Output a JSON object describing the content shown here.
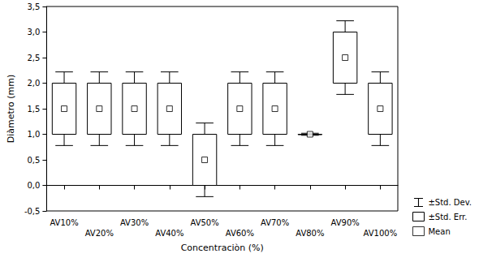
{
  "chart_data": {
    "type": "box",
    "x_label": "Concentraciòn (%)",
    "y_label": "Diàmetro (mm)",
    "categories": [
      "AV10%",
      "AV20%",
      "AV30%",
      "AV40%",
      "AV50%",
      "AV60%",
      "AV70%",
      "AV80%",
      "AV90%",
      "AV100%"
    ],
    "values": [
      1.5,
      1.5,
      1.5,
      1.5,
      0.5,
      1.5,
      1.5,
      1.0,
      2.5,
      1.5
    ],
    "std_err": [
      0.5,
      0.5,
      0.5,
      0.5,
      0.5,
      0.5,
      0.5,
      0.0,
      0.5,
      0.5
    ],
    "std_dev": [
      0.72,
      0.72,
      0.72,
      0.72,
      0.72,
      0.72,
      0.72,
      0.02,
      0.72,
      0.72
    ],
    "series_names": {
      "mean": "Mean",
      "std_err": "±Std. Err.",
      "std_dev": "±Std. Dev."
    },
    "color": "#000000",
    "ylim": [
      -0.5,
      3.5
    ],
    "yticks": [
      {
        "value": -0.5,
        "label": "-0,5"
      },
      {
        "value": 0,
        "label": "0,0"
      },
      {
        "value": 0.5,
        "label": "0,5"
      },
      {
        "value": 1,
        "label": "1,0"
      },
      {
        "value": 1.5,
        "label": "1,5"
      },
      {
        "value": 2,
        "label": "2,0"
      },
      {
        "value": 2.5,
        "label": "2,5"
      },
      {
        "value": 3,
        "label": "3,0"
      },
      {
        "value": 3.5,
        "label": "3,5"
      }
    ],
    "grid": false,
    "legend": "lower right"
  }
}
